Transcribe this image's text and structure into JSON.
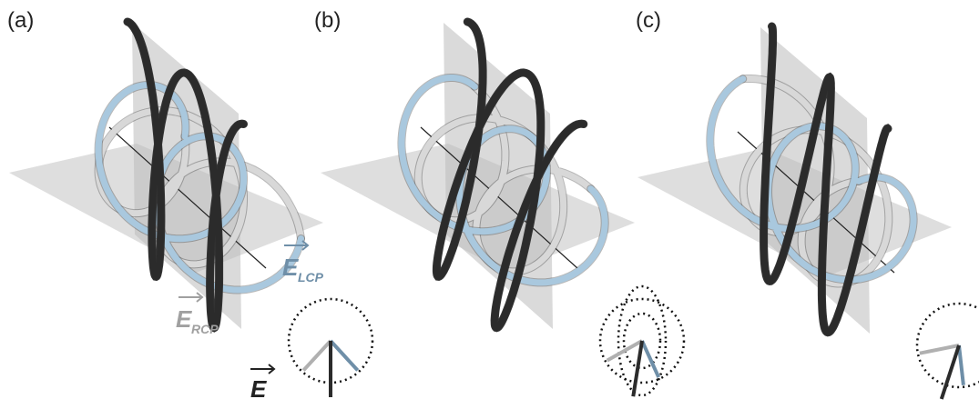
{
  "panels": [
    {
      "label": "(a)"
    },
    {
      "label": "(b)"
    },
    {
      "label": "(c)"
    }
  ],
  "vectors": {
    "lcp": {
      "symbol": "E",
      "subscript": "LCP"
    },
    "rcp": {
      "symbol": "E",
      "subscript": "RCP"
    },
    "total": {
      "symbol": "E"
    }
  }
}
